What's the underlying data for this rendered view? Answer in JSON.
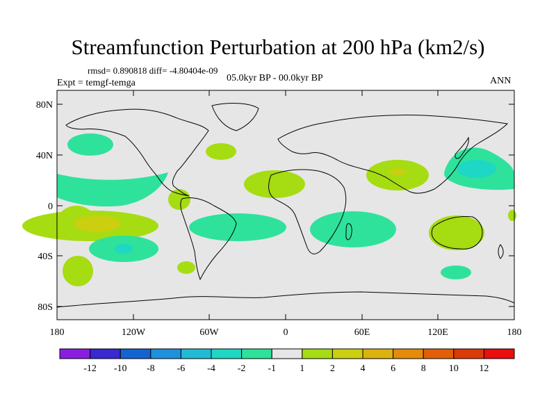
{
  "title": "Streamfunction Perturbation at 200 hPa (km2/s)",
  "stats_text": "rmsd= 0.890818 diff= -4.80404e-09",
  "experiment_text": "Expt = temgf-temga",
  "period_text": "05.0kyr BP - 00.0kyr BP",
  "season_text": "ANN",
  "map": {
    "lat_ticks": [
      "80N",
      "40N",
      "0",
      "40S",
      "80S"
    ],
    "lon_ticks": [
      "180",
      "120W",
      "60W",
      "0",
      "60E",
      "120E",
      "180"
    ],
    "land_fill": "#e6e6e6"
  },
  "colorbar": {
    "colors": [
      "#8a1ee0",
      "#3a28d0",
      "#1463d2",
      "#1e91dc",
      "#21bbd6",
      "#1ed7c4",
      "#2ee29c",
      "#e6e6e6",
      "#a6dc12",
      "#cbcf10",
      "#dcb20e",
      "#e38c0a",
      "#e25f08",
      "#d93a06",
      "#ea0e0e"
    ],
    "labels": [
      "-12",
      "-10",
      "-8",
      "-6",
      "-4",
      "-2",
      "-1",
      "1",
      "2",
      "4",
      "6",
      "8",
      "10",
      "12"
    ]
  }
}
